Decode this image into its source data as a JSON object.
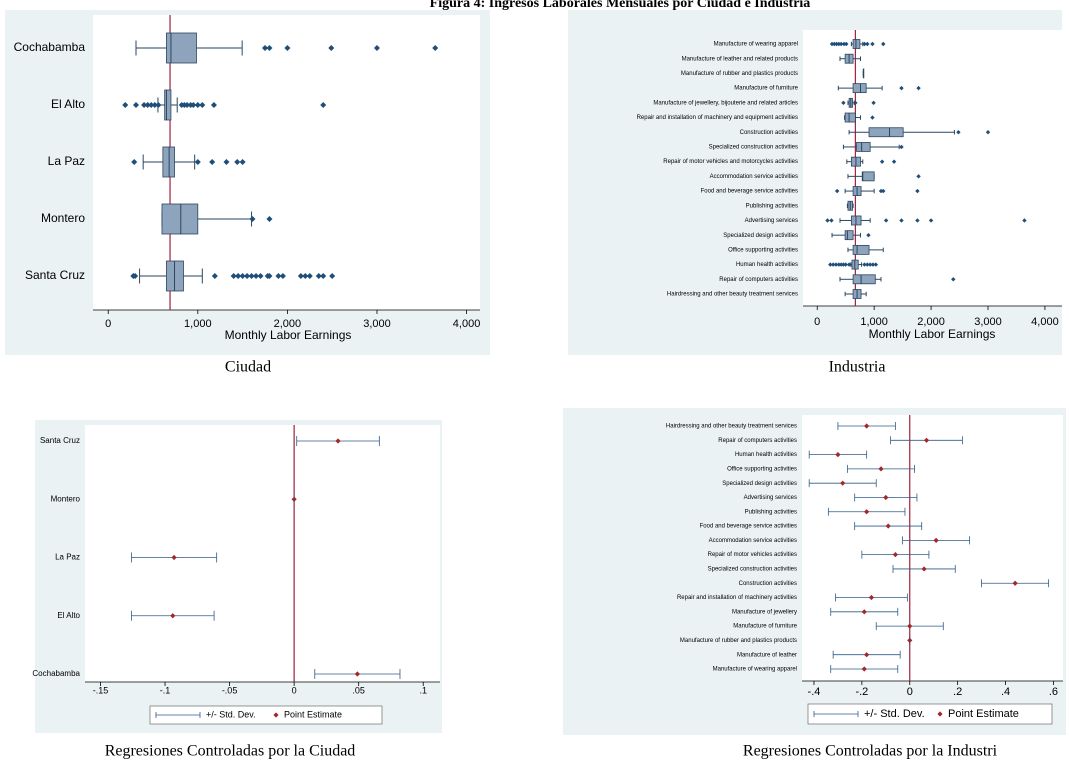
{
  "title": "Figura 4: Ingresos Laborales Mensuales por Ciudad e Industria",
  "chart_data": [
    {
      "type": "box",
      "caption": "Ciudad",
      "xlabel": "Monthly Labor Earnings",
      "categories": [
        "Cochabamba",
        "El Alto",
        "La Paz",
        "Montero",
        "Santa Cruz"
      ],
      "whisker_low": [
        310,
        555,
        390,
        600,
        350
      ],
      "q1": [
        650,
        630,
        610,
        600,
        650
      ],
      "median": [
        700,
        650,
        680,
        810,
        740
      ],
      "q3": [
        985,
        700,
        740,
        1000,
        840
      ],
      "whisker_high": [
        1495,
        770,
        965,
        1600,
        1050
      ],
      "outliers": [
        [
          1750,
          1800,
          2000,
          2490,
          3000,
          3650
        ],
        [
          190,
          310,
          400,
          440,
          480,
          520,
          560,
          820,
          850,
          880,
          920,
          950,
          1000,
          1050,
          1180,
          2400
        ],
        [
          290,
          1000,
          1160,
          1320,
          1440,
          1500
        ],
        [
          1610,
          1800
        ],
        [
          280,
          300,
          1190,
          1400,
          1450,
          1500,
          1550,
          1600,
          1650,
          1700,
          1780,
          1800,
          1900,
          1950,
          2150,
          2200,
          2250,
          2350,
          2400,
          2500
        ]
      ],
      "xlim": [
        -170,
        4150
      ],
      "xticks": [
        0,
        {
          "value": 1000,
          "label": "1,000"
        },
        {
          "value": 2000,
          "label": "2,000"
        },
        {
          "value": 3000,
          "label": "3,000"
        },
        {
          "value": 4000,
          "label": "4,000"
        }
      ],
      "ref_line": 690,
      "ref_color": "#a0203c",
      "box_color": "#8ea3bc",
      "outlier_color": "#1f4e79"
    },
    {
      "type": "box",
      "caption": "Industria",
      "xlabel": "Monthly Labor Earnings",
      "categories": [
        "Manufacture of wearing apparel",
        "Manufacture of leather and related products",
        "Manufacture of rubber and plastics products",
        "Manufacture of furniture",
        "Manufacture of jewellery, bijouterie and related articles",
        "Repair and installation of machinery and equipment activities",
        "Construction activities",
        "Specialized construction activities",
        "Repair of motor vehicles and motorcycles activities",
        "Accommodation service activities",
        "Food and beverage service activities",
        "Publishing activities",
        "Advertising services",
        "Specialized design activities",
        "Office supporting activities",
        "Human health activities",
        "Repair of computers activities",
        "Hairdressing and other beauty treatment services"
      ],
      "whisker_low": [
        600,
        400,
        810,
        370,
        540,
        480,
        560,
        460,
        520,
        540,
        490,
        530,
        400,
        260,
        540,
        590,
        400,
        490
      ],
      "q1": [
        630,
        490,
        810,
        630,
        560,
        490,
        910,
        690,
        600,
        790,
        630,
        540,
        600,
        490,
        630,
        610,
        630,
        630
      ],
      "median": [
        680,
        560,
        810,
        760,
        590,
        560,
        1270,
        780,
        680,
        800,
        700,
        580,
        680,
        530,
        700,
        660,
        770,
        700
      ],
      "q3": [
        750,
        630,
        810,
        860,
        620,
        670,
        1510,
        930,
        760,
        1000,
        770,
        620,
        770,
        630,
        910,
        720,
        1020,
        770
      ],
      "whisker_high": [
        800,
        760,
        810,
        1140,
        650,
        760,
        2410,
        1440,
        800,
        1000,
        1000,
        630,
        930,
        760,
        1160,
        780,
        1120,
        860
      ],
      "outliers": [
        [
          260,
          300,
          340,
          380,
          420,
          470,
          510,
          830,
          880,
          970,
          1160
        ],
        [],
        [],
        [
          1480,
          1780
        ],
        [
          460,
          670,
          990
        ],
        [
          970
        ],
        [
          2480,
          3000
        ],
        [
          1480
        ],
        [
          1140,
          1350
        ],
        [
          1780
        ],
        [
          350,
          1120,
          1160,
          1760
        ],
        [],
        [
          180,
          250,
          1210,
          1480,
          1760,
          2000,
          3640
        ],
        [
          900
        ],
        [],
        [
          230,
          280,
          330,
          380,
          420,
          460,
          500,
          560,
          830,
          880,
          930,
          980,
          1030
        ],
        [
          2390
        ],
        []
      ],
      "xlim": [
        -250,
        4300
      ],
      "xticks": [
        0,
        {
          "value": 1000,
          "label": "1,000"
        },
        {
          "value": 2000,
          "label": "2,000"
        },
        {
          "value": 3000,
          "label": "3,000"
        },
        {
          "value": 4000,
          "label": "4,000"
        }
      ],
      "ref_line": 670,
      "ref_color": "#a0203c",
      "box_color": "#8ea3bc",
      "outlier_color": "#1f4e79"
    },
    {
      "type": "errorbar",
      "caption": "Regresiones Controladas por la Ciudad",
      "categories": [
        "Santa Cruz",
        "Montero",
        "La Paz",
        "El Alto",
        "Cochabamba"
      ],
      "series": [
        {
          "name": "+/- Std. Dev.",
          "color": "#2e5c8a",
          "values": [
            0.032,
            0,
            0.033,
            0.032,
            0.033
          ]
        },
        {
          "name": "Point Estimate",
          "color": "#a1282c",
          "values": [
            0.034,
            0,
            -0.093,
            -0.094,
            0.049
          ]
        }
      ],
      "xlim": [
        -0.162,
        0.113
      ],
      "xticks": [
        {
          "value": -0.15,
          "label": "-.15"
        },
        {
          "value": -0.1,
          "label": "-.1"
        },
        {
          "value": -0.05,
          "label": "-.05"
        },
        0,
        {
          "value": 0.05,
          "label": ".05"
        },
        {
          "value": 0.1,
          "label": ".1"
        }
      ],
      "ref_line": 0,
      "ref_color": "#a0203c",
      "legend": "bottom"
    },
    {
      "type": "errorbar",
      "caption": "Regresiones Controladas por la Industri",
      "categories": [
        "Hairdressing and other beauty treatment services",
        "Repair of computers activities",
        "Human health activities",
        "Office supporting activities",
        "Specialized design activities",
        "Advertising services",
        "Publishing activities",
        "Food and beverage service activities",
        "Accommodation service activities",
        "Repair of motor vehicles activities",
        "Specialized construction activities",
        "Construction activities",
        "Repair and installation of machinery activities",
        "Manufacture of jewellery",
        "Manufacture of furniture",
        "Manufacture of rubber and plastics products",
        "Manufacture of leather",
        "Manufacture of wearing apparel"
      ],
      "series": [
        {
          "name": "+/- Std. Dev.",
          "color": "#2e5c8a",
          "values": [
            0.12,
            0.15,
            0.12,
            0.14,
            0.14,
            0.13,
            0.16,
            0.14,
            0.14,
            0.14,
            0.13,
            0.14,
            0.15,
            0.14,
            0.14,
            0,
            0.14,
            0.14
          ]
        },
        {
          "name": "Point Estimate",
          "color": "#a1282c",
          "values": [
            -0.18,
            0.07,
            -0.3,
            -0.12,
            -0.28,
            -0.1,
            -0.18,
            -0.09,
            0.11,
            -0.06,
            0.06,
            0.44,
            -0.16,
            -0.19,
            0,
            0,
            -0.18,
            -0.19
          ]
        }
      ],
      "xlim": [
        -0.45,
        0.64
      ],
      "xticks": [
        {
          "value": -0.4,
          "label": "-.4"
        },
        {
          "value": -0.2,
          "label": "-.2"
        },
        0,
        {
          "value": 0.2,
          "label": ".2"
        },
        {
          "value": 0.4,
          "label": ".4"
        },
        {
          "value": 0.6,
          "label": ".6"
        }
      ],
      "ref_line": 0,
      "ref_color": "#a0203c",
      "legend": "bottom"
    }
  ]
}
